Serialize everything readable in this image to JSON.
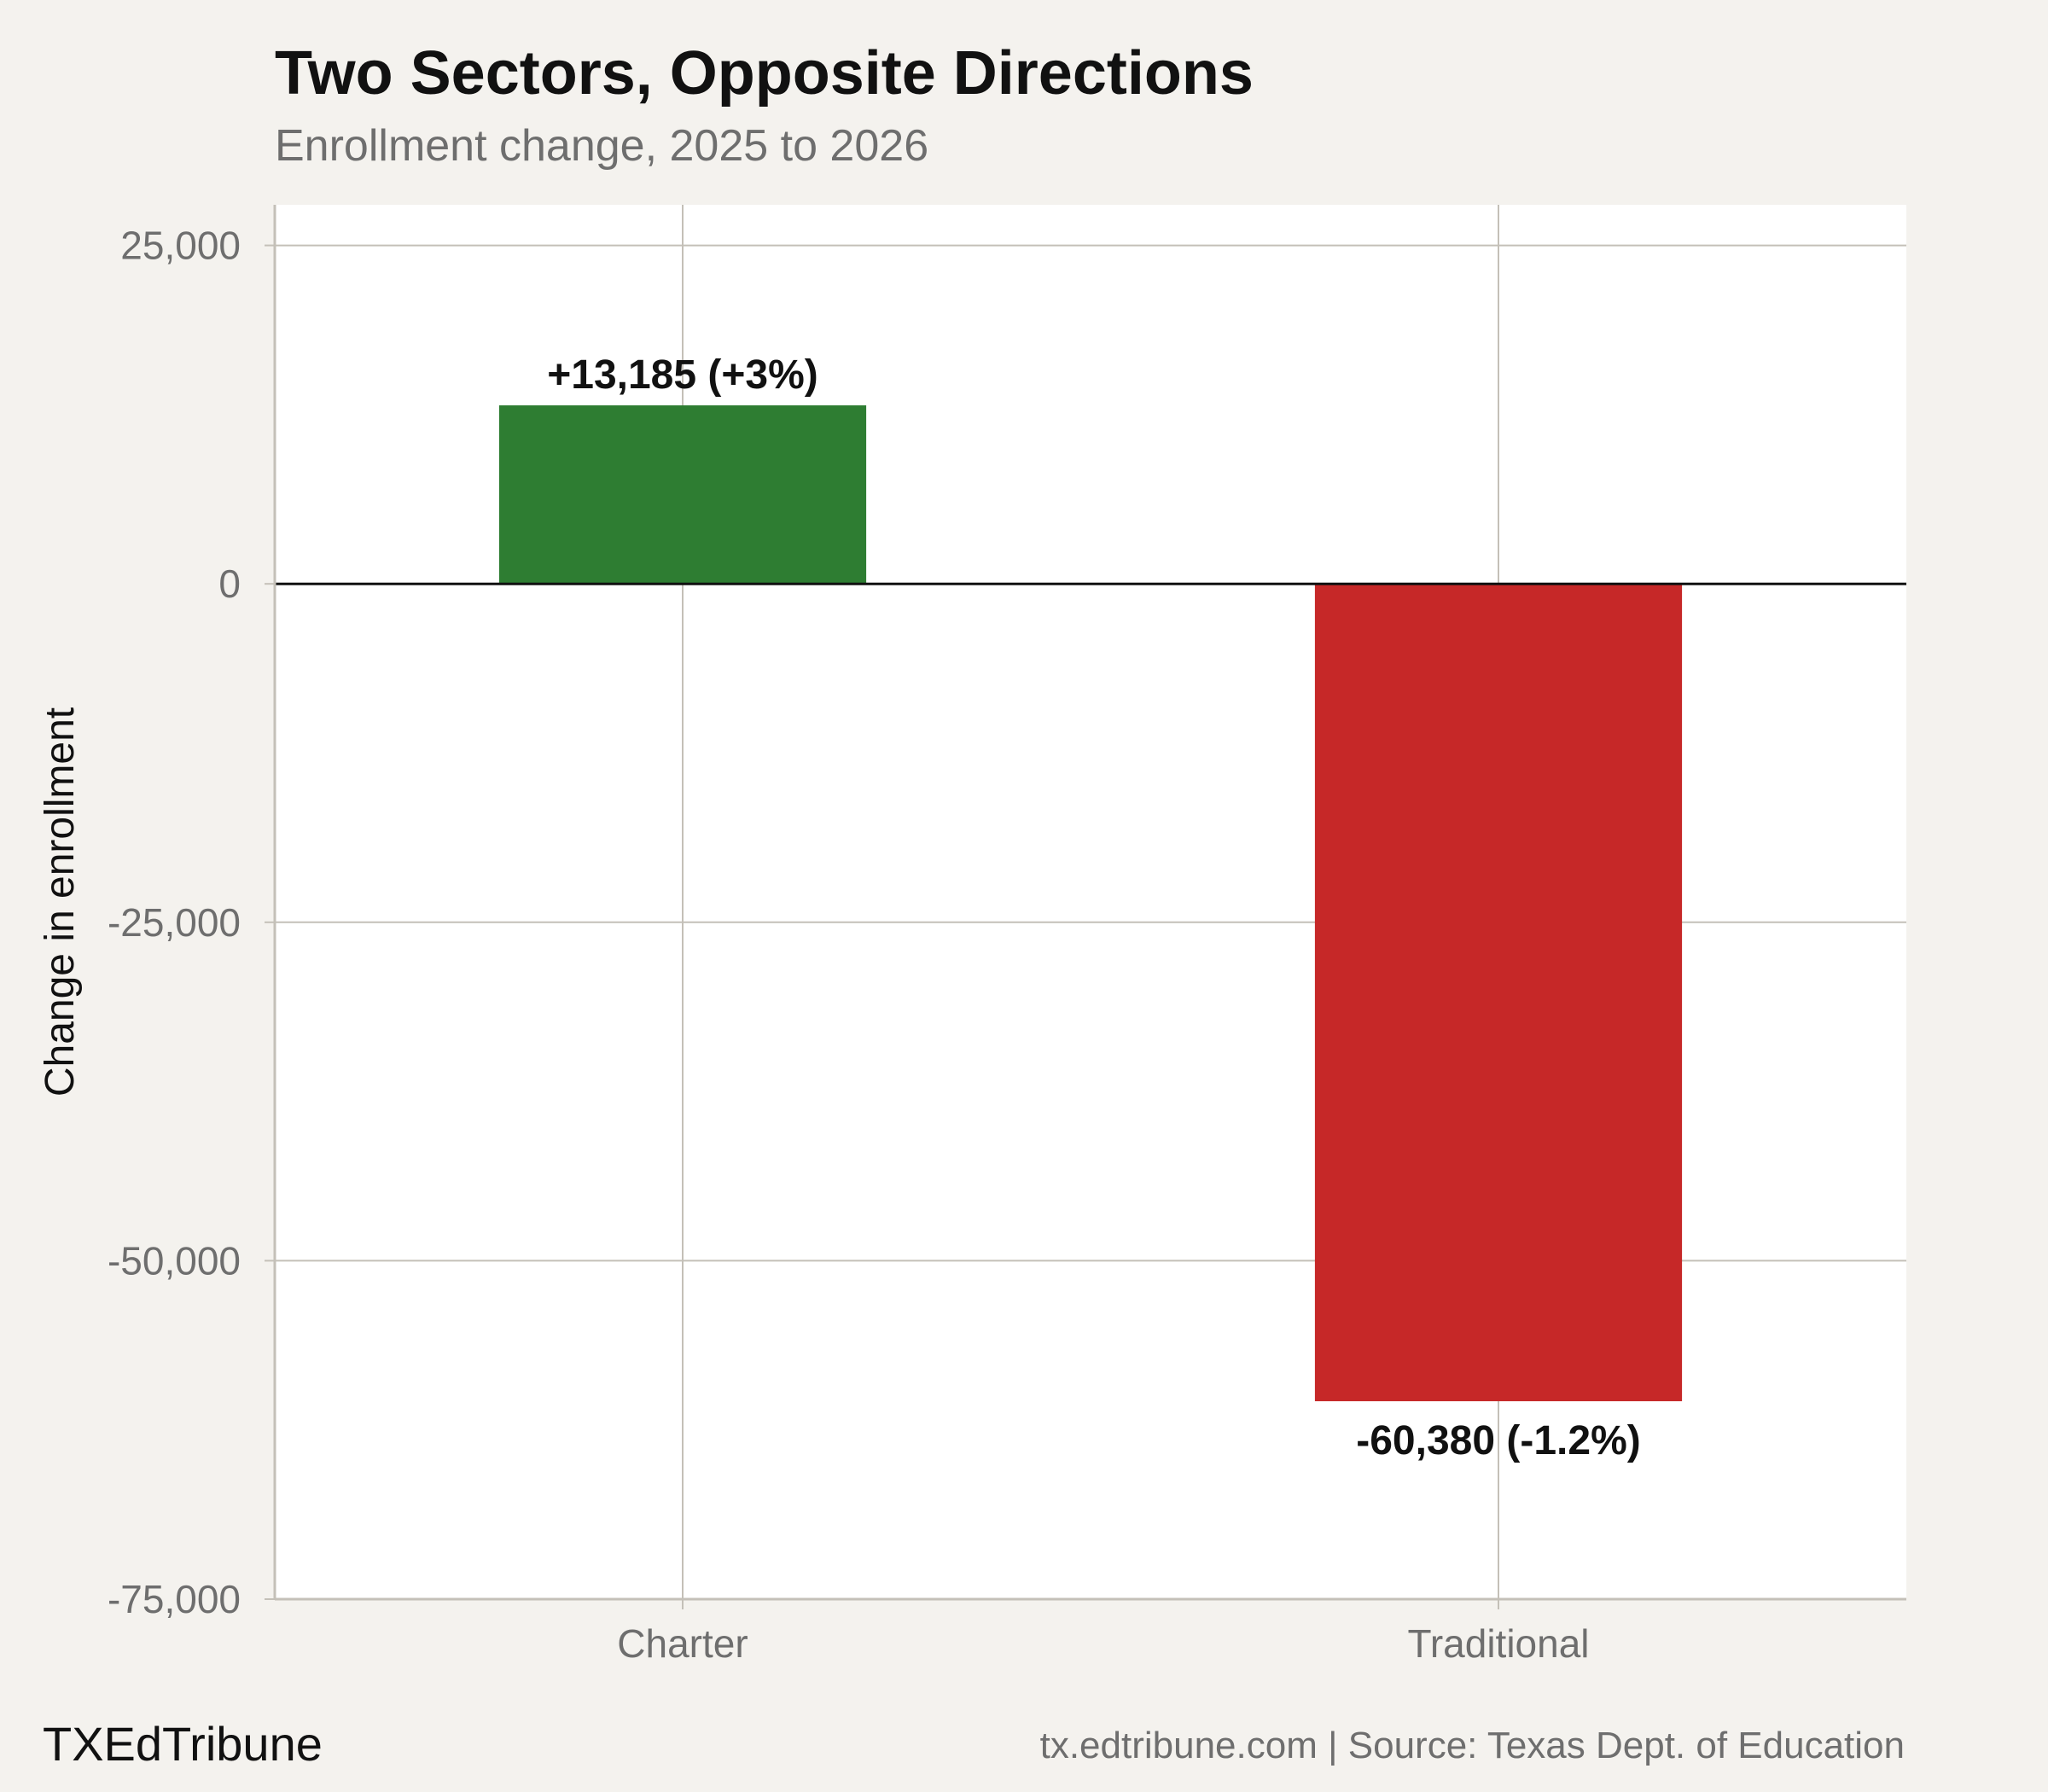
{
  "chart_data": {
    "type": "bar",
    "title": "Two Sectors, Opposite Directions",
    "subtitle": "Enrollment change, 2025 to 2026",
    "xlabel": "",
    "ylabel": "Change in enrollment",
    "categories": [
      "Charter",
      "Traditional"
    ],
    "values": [
      13185,
      -60380
    ],
    "data_labels": [
      "+13,185 (+3%)",
      "-60,380 (-1.2%)"
    ],
    "colors": [
      "#2e7d32",
      "#c62828"
    ],
    "ylim": [
      -75000,
      28000
    ],
    "yticks": [
      25000,
      0,
      -25000,
      -50000,
      -75000
    ],
    "ytick_labels": [
      "25,000",
      "0",
      "-25,000",
      "-50,000",
      "-75,000"
    ],
    "grid": true,
    "legend": "none"
  },
  "footer": {
    "brand": "TXEdTribune",
    "source": "tx.edtribune.com | Source: Texas Dept. of Education"
  }
}
